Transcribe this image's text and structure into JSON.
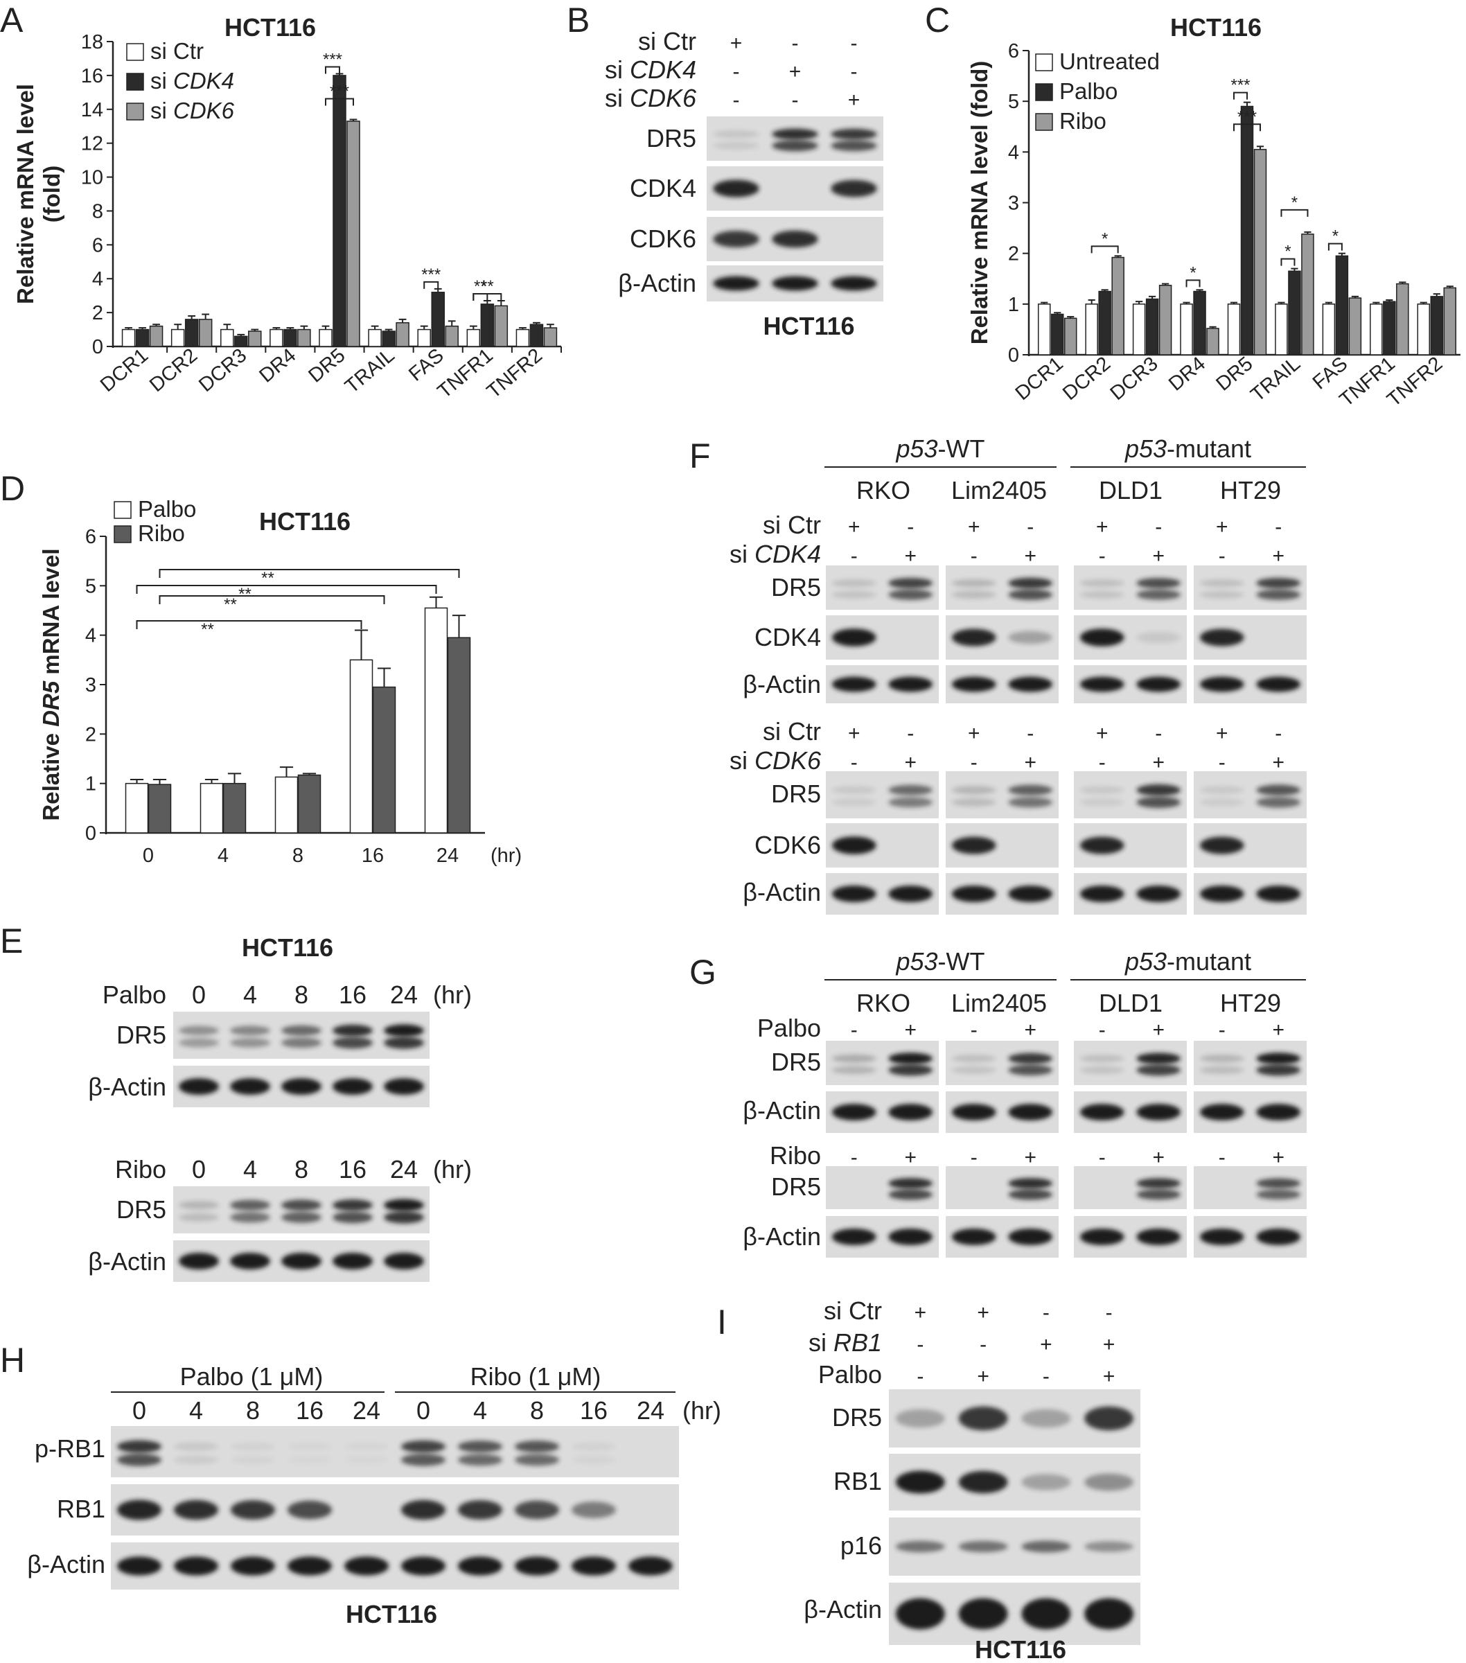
{
  "panels": {
    "A": "A",
    "B": "B",
    "C": "C",
    "D": "D",
    "E": "E",
    "F": "F",
    "G": "G",
    "H": "H",
    "I": "I"
  },
  "chart_data": [
    {
      "id": "A",
      "type": "bar",
      "title": "HCT116",
      "ylabel": "Relative mRNA level (fold)",
      "ylim": [
        0,
        18
      ],
      "yticks": [
        0,
        2,
        4,
        6,
        8,
        10,
        12,
        14,
        16,
        18
      ],
      "categories": [
        "DCR1",
        "DCR2",
        "DCR3",
        "DR4",
        "DR5",
        "TRAIL",
        "FAS",
        "TNFR1",
        "TNFR2"
      ],
      "series": [
        {
          "name": "si Ctr",
          "name_parts": [
            [
              "si Ctr",
              false
            ]
          ],
          "color": "#ffffff",
          "values": [
            1.0,
            1.0,
            1.0,
            1.0,
            1.0,
            1.0,
            1.0,
            1.0,
            1.0
          ],
          "errors": [
            0.1,
            0.3,
            0.3,
            0.1,
            0.2,
            0.2,
            0.2,
            0.2,
            0.1
          ]
        },
        {
          "name": "si CDK4",
          "name_parts": [
            [
              "si ",
              false
            ],
            [
              "CDK4",
              true
            ]
          ],
          "color": "#2b2b2b",
          "values": [
            1.0,
            1.6,
            0.6,
            1.0,
            16.0,
            0.9,
            3.2,
            2.5,
            1.3
          ],
          "errors": [
            0.1,
            0.2,
            0.1,
            0.1,
            0.1,
            0.1,
            0.2,
            0.2,
            0.1
          ]
        },
        {
          "name": "si CDK6",
          "name_parts": [
            [
              "si ",
              false
            ],
            [
              "CDK6",
              true
            ]
          ],
          "color": "#9b9b9b",
          "values": [
            1.2,
            1.6,
            0.9,
            1.0,
            13.3,
            1.4,
            1.2,
            2.4,
            1.1
          ],
          "errors": [
            0.1,
            0.3,
            0.1,
            0.2,
            0.1,
            0.2,
            0.3,
            0.3,
            0.2
          ]
        }
      ],
      "significance": [
        {
          "category": "DR5",
          "pair": [
            0,
            1
          ],
          "label": "***"
        },
        {
          "category": "DR5",
          "pair": [
            0,
            2
          ],
          "label": "***"
        },
        {
          "category": "FAS",
          "pair": [
            0,
            1
          ],
          "label": "***"
        },
        {
          "category": "TNFR1",
          "pair": [
            0,
            1
          ],
          "label": "**"
        },
        {
          "category": "TNFR1",
          "pair": [
            0,
            2
          ],
          "label": "**"
        }
      ],
      "legend": "top-left"
    },
    {
      "id": "C",
      "type": "bar",
      "title": "HCT116",
      "ylabel": "Relative mRNA level (fold)",
      "ylim": [
        0,
        6
      ],
      "yticks": [
        0,
        1,
        2,
        3,
        4,
        5,
        6
      ],
      "categories": [
        "DCR1",
        "DCR2",
        "DCR3",
        "DR4",
        "DR5",
        "TRAIL",
        "FAS",
        "TNFR1",
        "TNFR2"
      ],
      "series": [
        {
          "name": "Untreated",
          "color": "#ffffff",
          "values": [
            1.0,
            1.0,
            1.0,
            1.0,
            1.0,
            1.0,
            1.0,
            1.0,
            1.0
          ],
          "errors": [
            0.03,
            0.08,
            0.05,
            0.03,
            0.03,
            0.03,
            0.03,
            0.03,
            0.03
          ]
        },
        {
          "name": "Palbo",
          "color": "#2b2b2b",
          "values": [
            0.8,
            1.25,
            1.1,
            1.25,
            4.9,
            1.65,
            1.95,
            1.05,
            1.15
          ],
          "errors": [
            0.03,
            0.03,
            0.05,
            0.03,
            0.08,
            0.05,
            0.05,
            0.03,
            0.05
          ]
        },
        {
          "name": "Ribo",
          "color": "#9b9b9b",
          "values": [
            0.72,
            1.92,
            1.37,
            0.52,
            4.05,
            2.38,
            1.12,
            1.4,
            1.32
          ],
          "errors": [
            0.03,
            0.03,
            0.03,
            0.03,
            0.06,
            0.04,
            0.03,
            0.03,
            0.03
          ]
        }
      ],
      "significance": [
        {
          "category": "DCR2",
          "pair": [
            0,
            2
          ],
          "label": "*"
        },
        {
          "category": "DR4",
          "pair": [
            0,
            1
          ],
          "label": "*"
        },
        {
          "category": "DR5",
          "pair": [
            0,
            1
          ],
          "label": "***"
        },
        {
          "category": "DR5",
          "pair": [
            0,
            2
          ],
          "label": "***"
        },
        {
          "category": "TRAIL",
          "pair": [
            0,
            1
          ],
          "label": "*"
        },
        {
          "category": "TRAIL",
          "pair": [
            0,
            2
          ],
          "label": "*"
        },
        {
          "category": "FAS",
          "pair": [
            0,
            1
          ],
          "label": "*"
        }
      ],
      "legend": "top-left"
    },
    {
      "id": "D",
      "type": "bar",
      "title": "HCT116",
      "ylabel_parts": [
        [
          "Relative ",
          false
        ],
        [
          "DR5",
          true
        ],
        [
          " mRNA level",
          false
        ]
      ],
      "ylim": [
        0,
        6
      ],
      "yticks": [
        0,
        1,
        2,
        3,
        4,
        5,
        6
      ],
      "categories": [
        "0",
        "4",
        "8",
        "16",
        "24"
      ],
      "xunit": "(hr)",
      "series": [
        {
          "name": "Palbo",
          "color": "#ffffff",
          "values": [
            1.0,
            1.0,
            1.13,
            3.5,
            4.55
          ],
          "errors": [
            0.08,
            0.08,
            0.2,
            0.6,
            0.22
          ]
        },
        {
          "name": "Ribo",
          "color": "#5c5c5c",
          "values": [
            0.98,
            1.0,
            1.17,
            2.95,
            3.95
          ],
          "errors": [
            0.1,
            0.2,
            0.03,
            0.38,
            0.45
          ]
        }
      ],
      "significance": [
        {
          "from": "0",
          "to": "16",
          "label": "**"
        },
        {
          "from": "0",
          "to": "16",
          "label": "**"
        },
        {
          "from": "0",
          "to": "24",
          "label": "**"
        },
        {
          "from": "0",
          "to": "24",
          "label": "**"
        }
      ],
      "legend": "top-left"
    }
  ],
  "blots": {
    "B": {
      "conditions": [
        {
          "label": "si Ctr",
          "italic": "",
          "vals": [
            "+",
            "-",
            "-"
          ]
        },
        {
          "label": "si ",
          "italic": "CDK4",
          "vals": [
            "-",
            "+",
            "-"
          ]
        },
        {
          "label": "si ",
          "italic": "CDK6",
          "vals": [
            "-",
            "-",
            "+"
          ]
        }
      ],
      "rows": [
        "DR5",
        "CDK4",
        "CDK6",
        "β-Actin"
      ],
      "cell": "HCT116"
    },
    "E": {
      "cell": "HCT116",
      "top": {
        "agent": "Palbo",
        "times": [
          "0",
          "4",
          "8",
          "16",
          "24"
        ],
        "unit": "(hr)",
        "rows": [
          "DR5",
          "β-Actin"
        ]
      },
      "bottom": {
        "agent": "Ribo",
        "times": [
          "0",
          "4",
          "8",
          "16",
          "24"
        ],
        "unit": "(hr)",
        "rows": [
          "DR5",
          "β-Actin"
        ]
      }
    },
    "F": {
      "groups": [
        {
          "italic": "p53",
          "label": "-WT"
        },
        {
          "italic": "p53",
          "label": "-mutant"
        }
      ],
      "cells": [
        "RKO",
        "Lim2405",
        "DLD1",
        "HT29"
      ],
      "top": {
        "conditions": [
          {
            "label": "si Ctr",
            "italic": "",
            "vals": [
              "+",
              "-",
              "+",
              "-",
              "+",
              "-",
              "+",
              "-"
            ]
          },
          {
            "label": "si ",
            "italic": "CDK4",
            "vals": [
              "-",
              "+",
              "-",
              "+",
              "-",
              "+",
              "-",
              "+"
            ]
          }
        ],
        "rows": [
          "DR5",
          "CDK4",
          "β-Actin"
        ]
      },
      "bottom": {
        "conditions": [
          {
            "label": "si Ctr",
            "italic": "",
            "vals": [
              "+",
              "-",
              "+",
              "-",
              "+",
              "-",
              "+",
              "-"
            ]
          },
          {
            "label": "si ",
            "italic": "CDK6",
            "vals": [
              "-",
              "+",
              "-",
              "+",
              "-",
              "+",
              "-",
              "+"
            ]
          }
        ],
        "rows": [
          "DR5",
          "CDK6",
          "β-Actin"
        ]
      }
    },
    "G": {
      "groups": [
        {
          "italic": "p53",
          "label": "-WT"
        },
        {
          "italic": "p53",
          "label": "-mutant"
        }
      ],
      "cells": [
        "RKO",
        "Lim2405",
        "DLD1",
        "HT29"
      ],
      "top": {
        "agent": "Palbo",
        "vals": [
          "-",
          "+",
          "-",
          "+",
          "-",
          "+",
          "-",
          "+"
        ],
        "rows": [
          "DR5",
          "β-Actin"
        ]
      },
      "bottom": {
        "agent": "Ribo",
        "vals": [
          "-",
          "+",
          "-",
          "+",
          "-",
          "+",
          "-",
          "+"
        ],
        "rows": [
          "DR5",
          "β-Actin"
        ]
      }
    },
    "H": {
      "groups": [
        "Palbo (1 μM)",
        "Ribo (1 μM)"
      ],
      "times": [
        "0",
        "4",
        "8",
        "16",
        "24"
      ],
      "unit": "(hr)",
      "rows": [
        "p-RB1",
        "RB1",
        "β-Actin"
      ],
      "cell": "HCT116"
    },
    "I": {
      "conditions": [
        {
          "label": "si Ctr",
          "italic": "",
          "vals": [
            "+",
            "+",
            "-",
            "-"
          ]
        },
        {
          "label": "si ",
          "italic": "RB1",
          "vals": [
            "-",
            "-",
            "+",
            "+"
          ]
        },
        {
          "label": "Palbo",
          "italic": "",
          "vals": [
            "-",
            "+",
            "-",
            "+"
          ]
        }
      ],
      "rows": [
        "DR5",
        "RB1",
        "p16",
        "β-Actin"
      ],
      "cell": "HCT116"
    }
  }
}
